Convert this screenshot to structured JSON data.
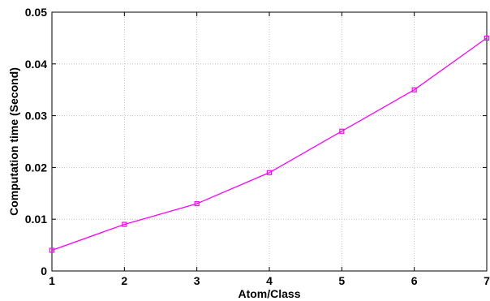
{
  "chart_data": {
    "type": "line",
    "xlabel": "Atom/Class",
    "ylabel": "Computation time (Second)",
    "xlim": [
      1,
      7
    ],
    "ylim": [
      0,
      0.05
    ],
    "xticks": [
      "1",
      "2",
      "3",
      "4",
      "5",
      "6",
      "7"
    ],
    "yticks": [
      "0",
      "0.01",
      "0.02",
      "0.03",
      "0.04",
      "0.05"
    ],
    "grid": true,
    "series": [
      {
        "color": "#ff00ff",
        "marker": "square",
        "x": [
          1,
          2,
          3,
          4,
          5,
          6,
          7
        ],
        "y": [
          0.004,
          0.009,
          0.013,
          0.019,
          0.027,
          0.035,
          0.045
        ]
      }
    ]
  }
}
